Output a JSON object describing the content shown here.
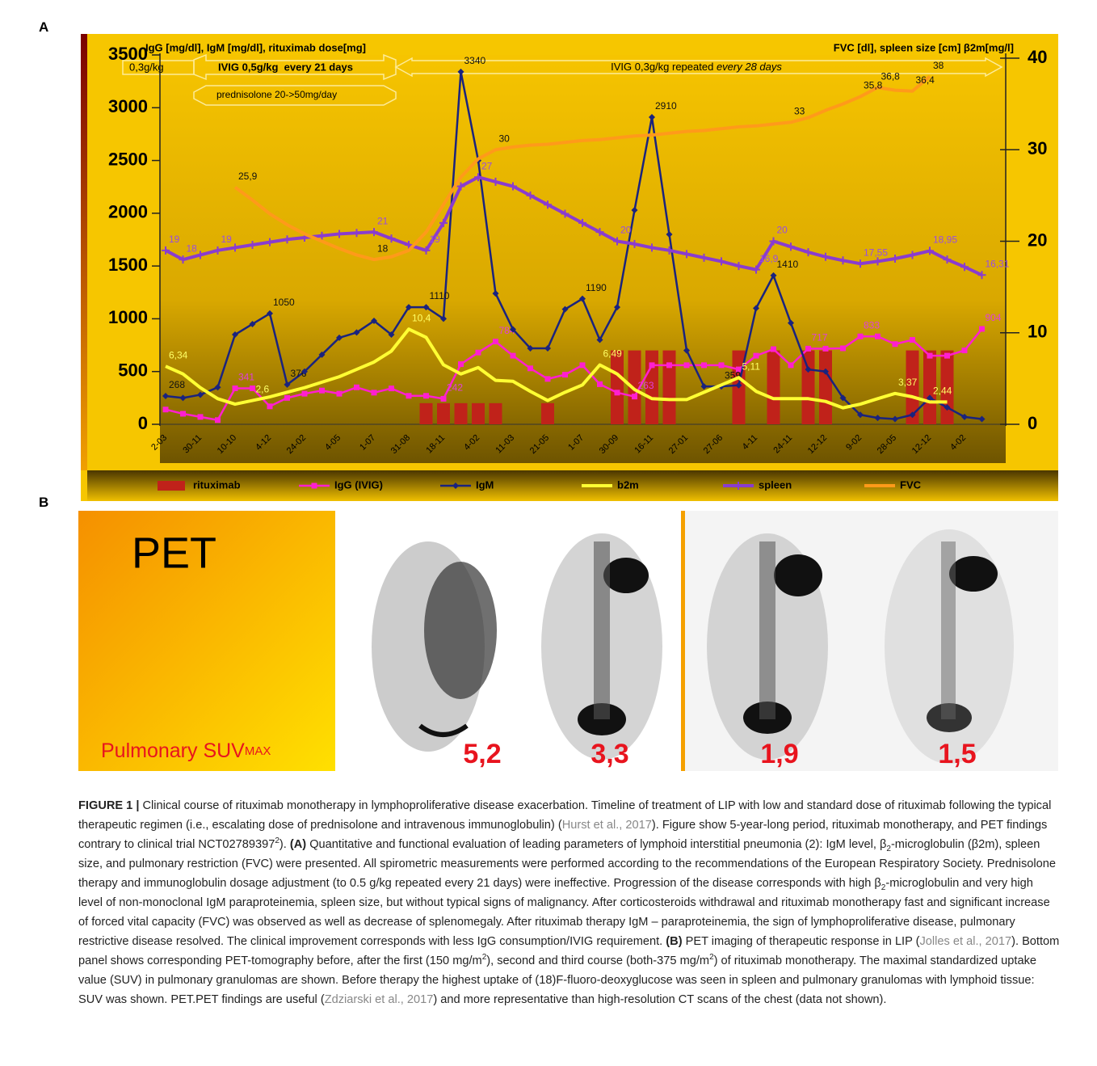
{
  "panels": [
    "A",
    "B"
  ],
  "chart_data": {
    "type": "combo",
    "ylabel": "IgG [mg/dl], IgM [mg/dl], rituximab dose[mg]",
    "y2label": "FVC [dl], spleen size [cm] β2m[mg/l]",
    "annotations": [
      "0,3g/kg",
      "IVIG 0,5g/kg  every 21 days",
      "prednisolone 20->50mg/day",
      "IVIG 0,3g/kg repeated ",
      "every 28 days"
    ],
    "categories": [
      "2-03",
      null,
      "30-11",
      null,
      "10-10",
      null,
      "4-12",
      null,
      "24-02",
      null,
      "4-05",
      null,
      "1-07",
      null,
      "31-08",
      null,
      "18-11",
      null,
      "4-02",
      null,
      "11-03",
      null,
      "21-05",
      null,
      "1-07",
      null,
      "30-09",
      null,
      "16-11",
      null,
      "27-01",
      null,
      "27-06",
      null,
      "4-11",
      null,
      "24-11",
      null,
      "12-12",
      null,
      "9-02",
      null,
      "28-05",
      null,
      "12-12",
      null,
      "4-02",
      null
    ],
    "ylim": [
      0,
      3500
    ],
    "yticks": [
      0,
      500,
      1000,
      1500,
      2000,
      2500,
      3000,
      3500
    ],
    "y2lim": [
      0,
      40
    ],
    "y2ticks": [
      0,
      10,
      20,
      30,
      40
    ],
    "legend": "bottom",
    "series": [
      {
        "name": "rituximab",
        "type": "bar",
        "color": "#c0221a",
        "values": [
          null,
          null,
          null,
          null,
          null,
          null,
          null,
          null,
          null,
          null,
          null,
          null,
          null,
          null,
          null,
          200,
          200,
          200,
          200,
          200,
          null,
          null,
          200,
          null,
          null,
          null,
          700,
          700,
          700,
          700,
          null,
          null,
          null,
          700,
          null,
          700,
          null,
          700,
          700,
          null,
          null,
          null,
          null,
          700,
          700,
          700,
          null,
          null
        ]
      },
      {
        "name": "IgG (IVIG)",
        "type": "line",
        "color": "#ff1fd0",
        "marker": "square",
        "label_color": "#e040d8",
        "values": [
          140,
          100,
          70,
          40,
          341,
          341,
          170,
          250,
          290,
          320,
          290,
          350,
          300,
          340,
          270,
          270,
          242,
          570,
          680,
          784,
          650,
          530,
          430,
          470,
          560,
          380,
          300,
          263,
          560,
          560,
          560,
          560,
          560,
          520,
          650,
          712,
          560,
          717,
          717,
          720,
          833,
          833,
          760,
          800,
          650,
          650,
          700,
          904
        ],
        "value_labels": [
          null,
          null,
          null,
          null,
          "341",
          null,
          null,
          null,
          null,
          null,
          null,
          null,
          null,
          null,
          null,
          null,
          "242",
          null,
          null,
          "784",
          null,
          null,
          null,
          null,
          null,
          null,
          null,
          "263",
          null,
          null,
          null,
          null,
          null,
          null,
          null,
          null,
          null,
          "717",
          null,
          null,
          "833",
          null,
          null,
          null,
          null,
          null,
          null,
          "904"
        ]
      },
      {
        "name": "IgM",
        "type": "line",
        "color": "#1a237e",
        "marker": "diamond",
        "label_color": "#111",
        "values": [
          268,
          250,
          280,
          350,
          850,
          950,
          1050,
          376,
          500,
          660,
          820,
          870,
          980,
          850,
          1110,
          1110,
          1000,
          3340,
          2500,
          1240,
          900,
          720,
          720,
          1090,
          1190,
          800,
          1110,
          2030,
          2910,
          1800,
          700,
          359,
          359,
          370,
          1100,
          1410,
          960,
          520,
          500,
          250,
          90,
          60,
          50,
          90,
          250,
          160,
          70,
          50
        ],
        "value_labels": [
          "268",
          null,
          null,
          null,
          null,
          null,
          "1050",
          "376",
          null,
          null,
          null,
          null,
          null,
          null,
          null,
          "1110",
          null,
          "3340",
          null,
          null,
          null,
          null,
          null,
          null,
          "1190",
          null,
          null,
          null,
          "2910",
          null,
          null,
          null,
          "359",
          null,
          null,
          "1410",
          null,
          null,
          null,
          null,
          null,
          null,
          null,
          null,
          null,
          null,
          null,
          null
        ]
      },
      {
        "name": "b2m",
        "type": "line",
        "axis": "y2",
        "color": "#ffff33",
        "marker": "none",
        "label_color": "#ffff66",
        "values": [
          6.34,
          5.5,
          4,
          2.8,
          2.2,
          2.6,
          3,
          3.5,
          4,
          4.6,
          5.2,
          6,
          6.8,
          8,
          10.4,
          9.5,
          6.5,
          5.5,
          6.2,
          4.8,
          4.7,
          3.6,
          2.6,
          3.5,
          4.3,
          6.49,
          5.5,
          3.8,
          2.8,
          2.7,
          2.7,
          3.5,
          4.3,
          5.11,
          3.6,
          2.8,
          2.8,
          2.8,
          2.5,
          1.8,
          2.2,
          2.8,
          3.37,
          3,
          2.44,
          2.44,
          null,
          null
        ],
        "value_labels": [
          "6,34",
          null,
          null,
          null,
          null,
          "2,6",
          null,
          null,
          null,
          null,
          null,
          null,
          null,
          null,
          "10,4",
          null,
          null,
          null,
          null,
          null,
          null,
          null,
          null,
          null,
          null,
          "6,49",
          null,
          null,
          null,
          null,
          null,
          null,
          null,
          "5,11",
          null,
          null,
          null,
          null,
          null,
          null,
          null,
          null,
          "3,37",
          null,
          "2,44",
          null,
          null,
          null
        ]
      },
      {
        "name": "spleen",
        "type": "line",
        "axis": "y2",
        "color": "#8a3ccf",
        "marker": "star",
        "label_color": "#9a4ee0",
        "values": [
          19,
          18,
          18.5,
          19,
          19.3,
          19.6,
          19.9,
          20.2,
          20.4,
          20.6,
          20.8,
          20.9,
          21,
          20.3,
          19.6,
          19,
          22,
          26,
          27,
          26.5,
          26,
          25,
          24,
          23,
          22,
          21,
          20,
          19.7,
          19.3,
          19,
          18.6,
          18.2,
          17.8,
          17.3,
          16.9,
          20,
          19.4,
          18.8,
          18.3,
          17.9,
          17.55,
          17.8,
          18.1,
          18.5,
          18.95,
          18,
          17.2,
          16.31
        ],
        "value_labels": [
          "19",
          "18",
          null,
          "19",
          null,
          null,
          null,
          null,
          null,
          null,
          null,
          null,
          "21",
          null,
          null,
          "19",
          null,
          null,
          "27",
          null,
          null,
          null,
          null,
          null,
          null,
          null,
          "20",
          null,
          null,
          null,
          null,
          null,
          null,
          null,
          "16,9",
          "20",
          null,
          null,
          null,
          null,
          "17,55",
          null,
          null,
          null,
          "18,95",
          null,
          null,
          "16,31"
        ]
      },
      {
        "name": "FVC",
        "type": "line",
        "axis": "y2",
        "color": "#ff9a1a",
        "marker": "none",
        "label_color": "#111",
        "values": [
          null,
          null,
          null,
          null,
          25.9,
          24.5,
          23,
          21.8,
          20.8,
          20,
          19.2,
          18.5,
          18,
          18.3,
          19,
          21,
          24,
          27,
          29,
          30,
          30.3,
          30.5,
          30.6,
          30.8,
          31,
          31.1,
          31.3,
          31.5,
          31.6,
          31.8,
          32,
          32.1,
          32.3,
          32.5,
          32.6,
          32.8,
          33,
          33.5,
          34.3,
          35,
          35.8,
          36.8,
          36.5,
          36.4,
          38,
          null,
          null,
          null
        ],
        "value_labels": [
          null,
          null,
          null,
          null,
          "25,9",
          null,
          null,
          null,
          null,
          null,
          null,
          null,
          "18",
          null,
          null,
          null,
          null,
          null,
          null,
          "30",
          null,
          null,
          null,
          null,
          null,
          null,
          null,
          null,
          null,
          null,
          null,
          null,
          null,
          null,
          null,
          null,
          "33",
          null,
          null,
          null,
          "35,8",
          "36,8",
          null,
          "36,4",
          "38",
          null,
          null,
          null
        ]
      }
    ]
  },
  "pet": {
    "title": "PET",
    "label": "Pulmonary SUV",
    "label_sub": "MAX",
    "suv": [
      "5,2",
      "3,3",
      "1,9",
      "1,5"
    ]
  },
  "caption": {
    "parts": [
      "FIGURE 1 |",
      " Clinical course of rituximab monotherapy in lymphoproliferative disease exacerbation. Timeline of treatment of LIP with low and standard dose of rituximab following the typical therapeutic regimen (i.e., escalating dose of prednisolone and intravenous immunoglobulin) (",
      "Hurst et al., 2017",
      "). Figure show 5-year-long period, rituximab monotherapy, and PET findings contrary to clinical trial NCT02789397",
      "2",
      "). ",
      "(A)",
      " Quantitative and functional evaluation of leading parameters of lymphoid interstitial pneumonia (2): IgM level, β",
      "2",
      "-microglobulin (β2m), spleen size, and pulmonary restriction (FVC) were presented. All spirometric measurements were performed according to the recommendations of the European Respiratory Society. Prednisolone therapy and immunoglobulin dosage adjustment (to 0.5 g/kg repeated every 21 days) were ineffective. Progression of the disease corresponds with high β",
      "2",
      "-microglobulin and very high level of non-monoclonal IgM paraproteinemia, spleen size, but without typical signs of malignancy. After corticosteroids withdrawal and rituximab monotherapy fast and significant increase of forced vital capacity (FVC) was observed as well as decrease of splenomegaly. After rituximab therapy IgM – paraproteinemia, the sign of lymphoproliferative disease, pulmonary restrictive disease resolved. The clinical improvement corresponds with less IgG consumption/IVIG requirement. ",
      "(B)",
      " PET imaging of therapeutic response in LIP (",
      "Jolles et al., 2017",
      "). Bottom panel shows corresponding PET-tomography before, after the first (150 mg/m",
      "2",
      "), second and third course (both-375 mg/m",
      "2",
      ") of rituximab monotherapy. The maximal standardized uptake value (SUV) in pulmonary granulomas are shown. Before therapy the highest uptake of (18)F-fluoro-deoxyglucose was seen in spleen and pulmonary granulomas with lymphoid tissue: SUV was shown. PET.PET findings are useful (",
      "Zdziarski et al., 2017",
      ") and more representative than high-resolution CT scans of the chest (data not shown)."
    ]
  }
}
